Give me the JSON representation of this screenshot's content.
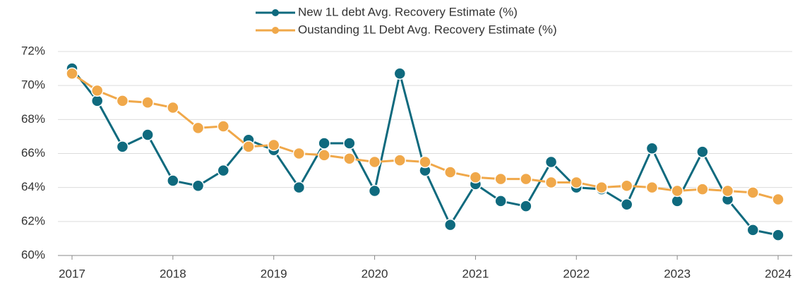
{
  "chart_data": {
    "type": "line",
    "x": [
      2017,
      2017.25,
      2017.5,
      2017.75,
      2018,
      2018.25,
      2018.5,
      2018.75,
      2019,
      2019.25,
      2019.5,
      2019.75,
      2020,
      2020.25,
      2020.5,
      2020.75,
      2021,
      2021.25,
      2021.5,
      2021.75,
      2022,
      2022.25,
      2022.5,
      2022.75,
      2023,
      2023.25,
      2023.5,
      2023.75,
      2024
    ],
    "series": [
      {
        "name": "New 1L debt Avg. Recovery Estimate (%)",
        "color": "#0f6a7e",
        "values": [
          71.0,
          69.1,
          66.4,
          67.1,
          64.4,
          64.1,
          65.0,
          66.8,
          66.2,
          64.0,
          66.6,
          66.6,
          63.8,
          70.7,
          65.0,
          61.8,
          64.2,
          63.2,
          62.9,
          65.5,
          64.0,
          63.9,
          63.0,
          66.3,
          63.2,
          66.1,
          63.3,
          61.5,
          61.2
        ]
      },
      {
        "name": "Oustanding 1L Debt Avg. Recovery Estimate (%)",
        "color": "#f0a84a",
        "values": [
          70.7,
          69.7,
          69.1,
          69.0,
          68.7,
          67.5,
          67.6,
          66.4,
          66.5,
          66.0,
          65.9,
          65.7,
          65.5,
          65.6,
          65.5,
          64.9,
          64.6,
          64.5,
          64.5,
          64.3,
          64.3,
          64.0,
          64.1,
          64.0,
          63.8,
          63.9,
          63.8,
          63.7,
          63.3
        ]
      }
    ],
    "xlim": [
      2016.86,
      2024.14
    ],
    "xticks": [
      2017,
      2018,
      2019,
      2020,
      2021,
      2022,
      2023,
      2024
    ],
    "ylim": [
      60,
      72
    ],
    "yticks": [
      {
        "value": 60,
        "label": "60%"
      },
      {
        "value": 62,
        "label": "62%"
      },
      {
        "value": 64,
        "label": "64%"
      },
      {
        "value": 66,
        "label": "66%"
      },
      {
        "value": 68,
        "label": "68%"
      },
      {
        "value": 70,
        "label": "70%"
      },
      {
        "value": 72,
        "label": "72%"
      }
    ],
    "grid": true,
    "legend": "top"
  }
}
